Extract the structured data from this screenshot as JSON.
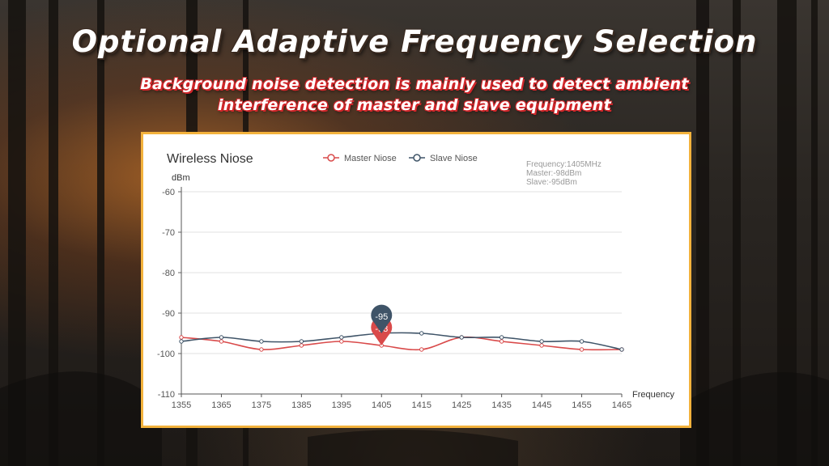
{
  "header": {
    "title": "Optional Adaptive Frequency Selection",
    "subtitle_line1": "Background noise detection is mainly used to detect ambient",
    "subtitle_line2": "interference of master and slave equipment"
  },
  "colors": {
    "master": "#d94a4a",
    "slave": "#3f5468",
    "card_border": "#f3b23c"
  },
  "chart_data": {
    "type": "line",
    "title": "Wireless Niose",
    "ylabel": "dBm",
    "xlabel": "Frequency",
    "legend_position": "top-center",
    "x": [
      1355,
      1365,
      1375,
      1385,
      1395,
      1405,
      1415,
      1425,
      1435,
      1445,
      1455,
      1465
    ],
    "x_ticks": [
      "1355",
      "1365",
      "1375",
      "1385",
      "1395",
      "1405",
      "1415",
      "1425",
      "1435",
      "1445",
      "1455",
      "1465"
    ],
    "y_ticks": [
      "-60",
      "-70",
      "-80",
      "-90",
      "-100",
      "-110"
    ],
    "xlim": [
      1355,
      1465
    ],
    "ylim": [
      -110,
      -60
    ],
    "grid": true,
    "series": [
      {
        "name": "Master Niose",
        "values": [
          -96,
          -97,
          -99,
          -98,
          -97,
          -98,
          -99,
          -96,
          -97,
          -98,
          -99,
          -99
        ]
      },
      {
        "name": "Slave Niose",
        "values": [
          -97,
          -96,
          -97,
          -97,
          -96,
          -95,
          -95,
          -96,
          -96,
          -97,
          -97,
          -99
        ]
      }
    ],
    "tooltip": {
      "line1": "Frequency:1405MHz",
      "line2": "Master:-98dBm",
      "line3": "Slave:-95dBm"
    },
    "markers": [
      {
        "series": "Master Niose",
        "x": 1405,
        "label": "-98"
      },
      {
        "series": "Slave Niose",
        "x": 1405,
        "label": "-95"
      }
    ]
  }
}
